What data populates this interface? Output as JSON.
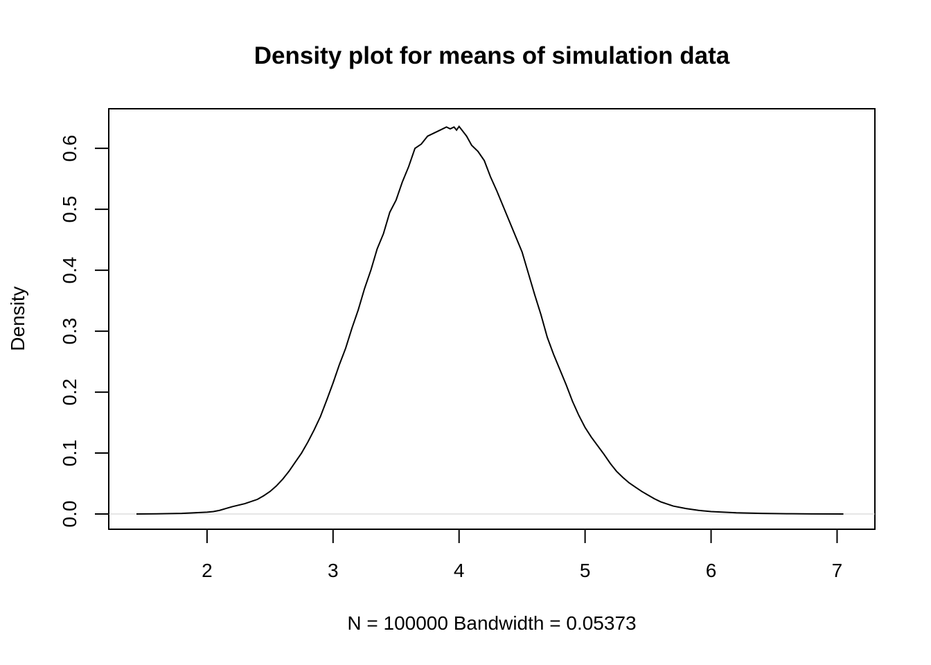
{
  "chart_data": {
    "type": "line",
    "title": "Density plot for means of simulation data",
    "xlabel": "N = 100000   Bandwidth = 0.05373",
    "ylabel": "Density",
    "xlim": [
      1.22,
      7.3
    ],
    "ylim": [
      -0.025,
      0.665
    ],
    "x_ticks": [
      2,
      3,
      4,
      5,
      6,
      7
    ],
    "x_tick_labels": [
      "2",
      "3",
      "4",
      "5",
      "6",
      "7"
    ],
    "y_ticks": [
      0.0,
      0.1,
      0.2,
      0.3,
      0.4,
      0.5,
      0.6
    ],
    "y_tick_labels": [
      "0.0",
      "0.1",
      "0.2",
      "0.3",
      "0.4",
      "0.5",
      "0.6"
    ],
    "grid": false,
    "legend": "none",
    "color": "#000000",
    "series": [
      {
        "x": [
          1.44,
          1.6,
          1.8,
          1.9,
          2.0,
          2.05,
          2.1,
          2.15,
          2.2,
          2.3,
          2.4,
          2.45,
          2.5,
          2.55,
          2.6,
          2.65,
          2.7,
          2.75,
          2.8,
          2.85,
          2.9,
          2.95,
          3.0,
          3.05,
          3.1,
          3.15,
          3.2,
          3.25,
          3.3,
          3.35,
          3.4,
          3.45,
          3.5,
          3.55,
          3.6,
          3.65,
          3.7,
          3.75,
          3.8,
          3.85,
          3.9,
          3.93,
          3.96,
          3.98,
          4.0,
          4.03,
          4.06,
          4.1,
          4.15,
          4.2,
          4.25,
          4.3,
          4.35,
          4.4,
          4.45,
          4.5,
          4.55,
          4.6,
          4.65,
          4.7,
          4.75,
          4.8,
          4.85,
          4.9,
          4.95,
          5.0,
          5.05,
          5.1,
          5.15,
          5.2,
          5.25,
          5.3,
          5.35,
          5.4,
          5.45,
          5.5,
          5.55,
          5.6,
          5.7,
          5.8,
          5.9,
          6.0,
          6.1,
          6.2,
          6.4,
          6.6,
          6.8,
          7.05
        ],
        "y": [
          0.0,
          0.0003,
          0.001,
          0.002,
          0.003,
          0.004,
          0.006,
          0.009,
          0.012,
          0.017,
          0.024,
          0.03,
          0.037,
          0.046,
          0.057,
          0.07,
          0.085,
          0.1,
          0.118,
          0.138,
          0.16,
          0.187,
          0.215,
          0.245,
          0.272,
          0.305,
          0.335,
          0.37,
          0.4,
          0.435,
          0.46,
          0.495,
          0.515,
          0.545,
          0.57,
          0.6,
          0.607,
          0.62,
          0.625,
          0.63,
          0.635,
          0.632,
          0.635,
          0.63,
          0.636,
          0.628,
          0.62,
          0.605,
          0.595,
          0.58,
          0.553,
          0.53,
          0.505,
          0.48,
          0.455,
          0.43,
          0.395,
          0.36,
          0.327,
          0.29,
          0.262,
          0.237,
          0.212,
          0.185,
          0.162,
          0.142,
          0.126,
          0.112,
          0.098,
          0.083,
          0.07,
          0.06,
          0.051,
          0.044,
          0.037,
          0.031,
          0.025,
          0.02,
          0.013,
          0.009,
          0.006,
          0.004,
          0.003,
          0.002,
          0.001,
          0.0005,
          0.0002,
          0.0
        ]
      }
    ]
  }
}
